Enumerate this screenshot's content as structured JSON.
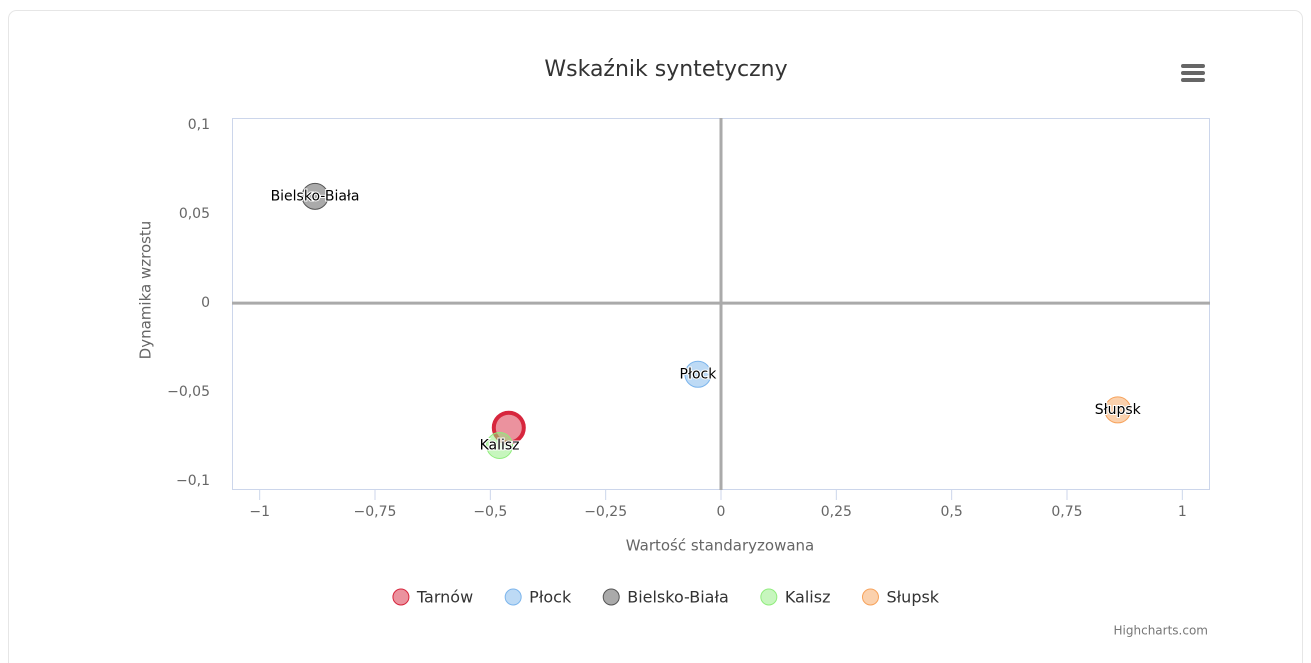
{
  "chart_data": {
    "type": "scatter",
    "title": "Wskaźnik syntetyczny",
    "x_label": "Wartość standaryzowana",
    "y_label": "Dynamika wzrostu",
    "credits": "Highcharts.com",
    "xlim": [
      -1.06,
      1.06
    ],
    "ylim": [
      -0.105,
      0.104
    ],
    "xticks": [
      {
        "value": -1,
        "label": "−1"
      },
      {
        "value": -0.75,
        "label": "−0,75"
      },
      {
        "value": -0.5,
        "label": "−0,5"
      },
      {
        "value": -0.25,
        "label": "−0,25"
      },
      0,
      {
        "value": 0.25,
        "label": "0,25"
      },
      {
        "value": 0.5,
        "label": "0,5"
      },
      {
        "value": 0.75,
        "label": "0,75"
      },
      1
    ],
    "yticks": [
      {
        "value": -0.1,
        "label": "−0,1"
      },
      {
        "value": -0.05,
        "label": "−0,05"
      },
      0,
      {
        "value": 0.05,
        "label": "0,05"
      },
      {
        "value": 0.1,
        "label": "0,1"
      }
    ],
    "series": [
      {
        "name": "Tarnów",
        "color": "#d7263d",
        "x": [
          -0.46
        ],
        "values": [
          -0.07
        ]
      },
      {
        "name": "Płock",
        "color": "#7cb5ec",
        "x": [
          -0.05
        ],
        "values": [
          -0.04
        ]
      },
      {
        "name": "Bielsko-Biała",
        "color": "#555555",
        "x": [
          -0.88
        ],
        "values": [
          0.06
        ]
      },
      {
        "name": "Kalisz",
        "color": "#90ed7d",
        "x": [
          -0.48
        ],
        "values": [
          -0.08
        ]
      },
      {
        "name": "Słupsk",
        "color": "#f7a35c",
        "x": [
          0.86
        ],
        "values": [
          -0.06
        ]
      }
    ]
  }
}
